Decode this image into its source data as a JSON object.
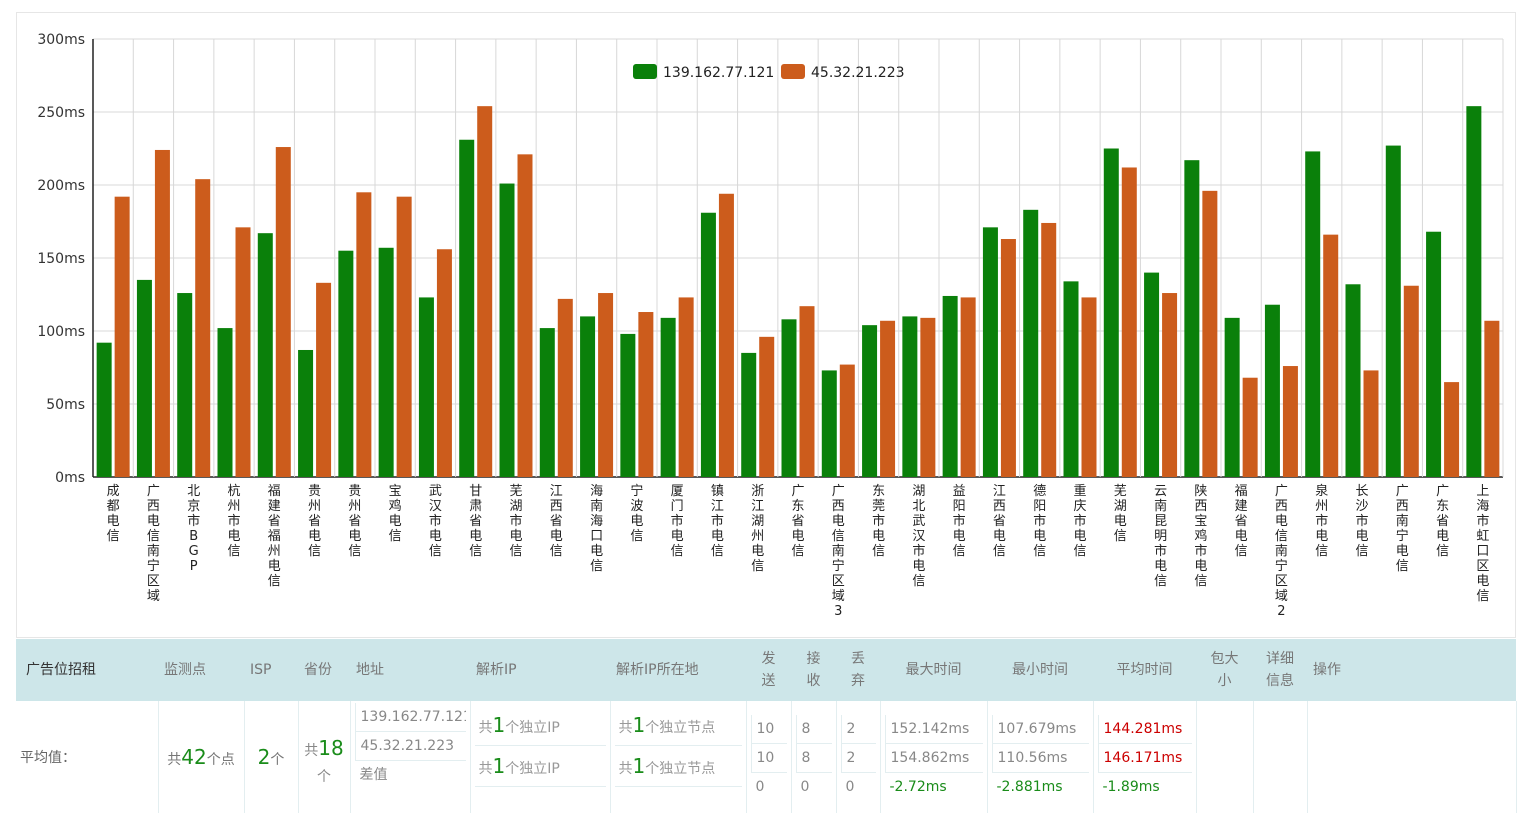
{
  "chart_data": {
    "type": "bar",
    "categories": [
      "成都电信",
      "广西电信南宁区域",
      "北京市BGP",
      "杭州市电信",
      "福建省福州电信",
      "贵州省电信",
      "贵州省电信",
      "宝鸡电信",
      "武汉市电信",
      "甘肃省电信",
      "芜湖市电信",
      "江西省电信",
      "海南海口电信",
      "宁波电信",
      "厦门市电信",
      "镇江市电信",
      "浙江湖州电信",
      "广东省电信",
      "广西电信南宁区域3",
      "东莞市电信",
      "湖北武汉市电信",
      "益阳市电信",
      "江西省电信",
      "德阳市电信",
      "重庆市电信",
      "芜湖电信",
      "云南昆明市电信",
      "陕西宝鸡市电信",
      "福建省电信",
      "广西电信南宁区域2",
      "泉州市电信",
      "长沙市电信",
      "广西南宁电信",
      "广东省电信",
      "上海市虹口区电信"
    ],
    "series": [
      {
        "name": "139.162.77.121",
        "color": "#0a800a",
        "values": [
          92,
          135,
          126,
          102,
          167,
          87,
          155,
          157,
          123,
          231,
          201,
          102,
          110,
          98,
          109,
          181,
          85,
          108,
          73,
          104,
          110,
          124,
          171,
          183,
          134,
          225,
          140,
          217,
          109,
          118,
          223,
          132,
          227,
          168,
          254
        ]
      },
      {
        "name": "45.32.21.223",
        "color": "#cc5c1c",
        "values": [
          192,
          224,
          204,
          171,
          226,
          133,
          195,
          192,
          156,
          254,
          221,
          122,
          126,
          113,
          123,
          194,
          96,
          117,
          77,
          107,
          109,
          123,
          163,
          174,
          123,
          212,
          126,
          196,
          68,
          76,
          166,
          73,
          131,
          65,
          107
        ]
      }
    ],
    "yticks": [
      "0ms",
      "50ms",
      "100ms",
      "150ms",
      "200ms",
      "250ms",
      "300ms"
    ],
    "ylim": [
      0,
      300
    ],
    "grid": true,
    "legend": "top-center"
  },
  "table": {
    "headers": {
      "brand": "广告位招租",
      "node": "监测点",
      "isp": "ISP",
      "province": "省份",
      "address": "地址",
      "resolved_ip": "解析IP",
      "resolved_loc": "解析IP所在地",
      "send": "发送",
      "recv": "接收",
      "loss": "丢弃",
      "max": "最大时间",
      "min": "最小时间",
      "avg": "平均时间",
      "packet": "包大小",
      "detail": "详细信息",
      "ops": "操作"
    },
    "row": {
      "label": "平均值：",
      "node_prefix": "共",
      "node_count": "42",
      "node_suffix": "个点",
      "isp_count": "2",
      "isp_suffix": "个",
      "prov_prefix": "共",
      "prov_count": "18",
      "prov_suffix": "个",
      "addresses": [
        "139.162.77.121",
        "45.32.21.223",
        "差值"
      ],
      "ip_lines": [
        {
          "prefix": "共",
          "num": "1",
          "suffix": "个独立IP"
        },
        {
          "prefix": "共",
          "num": "1",
          "suffix": "个独立IP"
        }
      ],
      "loc_lines": [
        {
          "prefix": "共",
          "num": "1",
          "suffix": "个独立节点"
        },
        {
          "prefix": "共",
          "num": "1",
          "suffix": "个独立节点"
        }
      ],
      "send": [
        "10",
        "10",
        "0"
      ],
      "recv": [
        "8",
        "8",
        "0"
      ],
      "loss": [
        "2",
        "2",
        "0"
      ],
      "max": [
        "152.142ms",
        "154.862ms",
        "-2.72ms"
      ],
      "min": [
        "107.679ms",
        "110.56ms",
        "-2.881ms"
      ],
      "avg": [
        "144.281ms",
        "146.171ms",
        "-1.89ms"
      ]
    }
  }
}
